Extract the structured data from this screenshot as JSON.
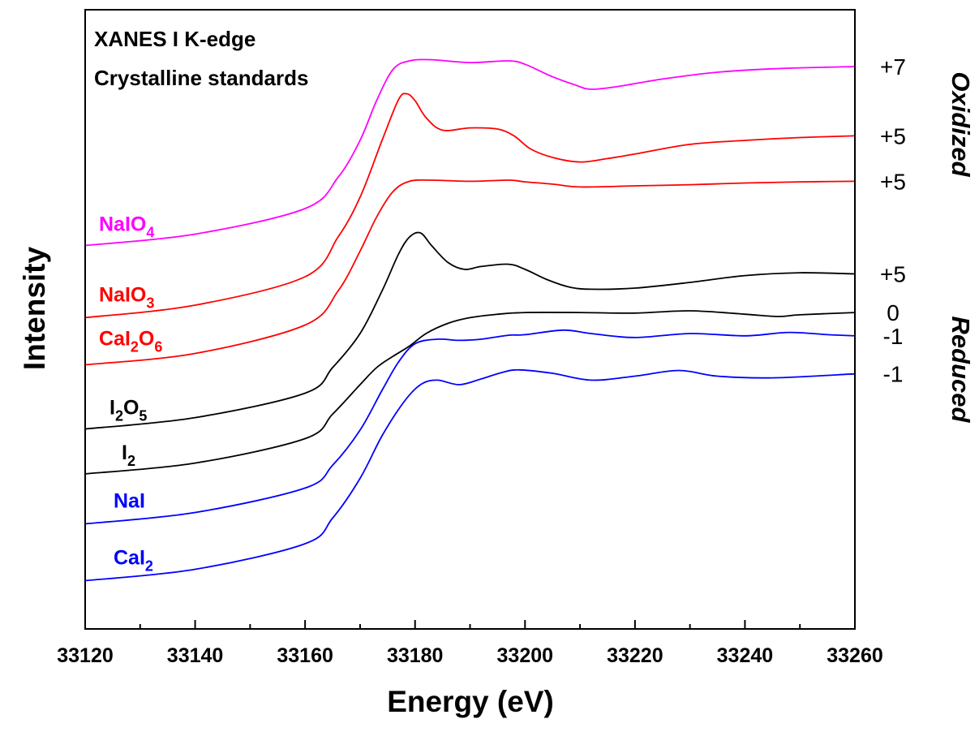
{
  "chart_data": {
    "type": "line",
    "xlabel": "Energy (eV)",
    "ylabel": "Intensity",
    "xlim": [
      33120,
      33260
    ],
    "xticks": [
      "33120",
      "33140",
      "33160",
      "33180",
      "33200",
      "33220",
      "33240",
      "33260"
    ],
    "annotation": {
      "line1": "XANES I K-edge",
      "line2": "Crystalline standards"
    },
    "side_labels": {
      "top": "Oxidized",
      "bottom": "Reduced"
    },
    "series": [
      {
        "name": "NaIO₄",
        "label": {
          "base": "NaIO",
          "sub": "4"
        },
        "color": "#ff00ff",
        "oxidation_state": "+7",
        "x": [
          33120,
          33140,
          33160,
          33166,
          33170,
          33173,
          33176,
          33179,
          33183,
          33190,
          33197,
          33200,
          33205,
          33209,
          33212,
          33217,
          33225,
          33235,
          33245,
          33260
        ],
        "y": [
          6.75,
          6.95,
          7.4,
          7.95,
          8.6,
          9.3,
          9.85,
          10.0,
          10.02,
          9.97,
          10.0,
          9.94,
          9.72,
          9.58,
          9.5,
          9.55,
          9.68,
          9.8,
          9.86,
          9.9
        ]
      },
      {
        "name": "NaIO₃",
        "label": {
          "base": "NaIO",
          "sub": "3"
        },
        "color": "#ff0000",
        "oxidation_state": "+5",
        "x": [
          33120,
          33140,
          33160,
          33166,
          33170,
          33174,
          33177,
          33178.5,
          33180,
          33182,
          33185,
          33190,
          33195,
          33198,
          33201,
          33205,
          33210,
          33215,
          33220,
          33230,
          33240,
          33250,
          33260
        ],
        "y": [
          5.48,
          5.7,
          6.2,
          6.9,
          7.6,
          8.6,
          9.32,
          9.42,
          9.3,
          9.0,
          8.78,
          8.82,
          8.8,
          8.68,
          8.45,
          8.3,
          8.22,
          8.28,
          8.36,
          8.53,
          8.6,
          8.65,
          8.68
        ]
      },
      {
        "name": "CaI₂O₆",
        "label": {
          "base": "CaI",
          "sub": "2",
          "base2": "O",
          "sub2": "6"
        },
        "color": "#ff0000",
        "oxidation_state": "+5",
        "x": [
          33120,
          33140,
          33160,
          33166,
          33170,
          33173,
          33176,
          33179,
          33183,
          33190,
          33197,
          33200,
          33205,
          33210,
          33220,
          33230,
          33240,
          33250,
          33260
        ],
        "y": [
          4.65,
          4.85,
          5.35,
          5.95,
          6.65,
          7.25,
          7.7,
          7.88,
          7.9,
          7.88,
          7.9,
          7.87,
          7.83,
          7.78,
          7.8,
          7.82,
          7.85,
          7.87,
          7.88
        ]
      },
      {
        "name": "I₂O₅",
        "label": {
          "base": "I",
          "sub": "2",
          "base2": "O",
          "sub2": "5"
        },
        "color": "#000000",
        "oxidation_state": "+5",
        "x": [
          33120,
          33140,
          33160,
          33165,
          33170,
          33174,
          33177,
          33179,
          33181,
          33183,
          33186,
          33189,
          33192,
          33197,
          33200,
          33204,
          33208,
          33212,
          33220,
          33230,
          33240,
          33250,
          33260
        ],
        "y": [
          3.52,
          3.72,
          4.15,
          4.6,
          5.2,
          5.95,
          6.6,
          6.9,
          6.97,
          6.75,
          6.45,
          6.33,
          6.38,
          6.42,
          6.33,
          6.15,
          6.02,
          5.98,
          6.0,
          6.1,
          6.22,
          6.27,
          6.25
        ]
      },
      {
        "name": "I₂",
        "label": {
          "base": "I",
          "sub": "2"
        },
        "color": "#000000",
        "oxidation_state": "0",
        "x": [
          33120,
          33140,
          33160,
          33165,
          33170,
          33173,
          33176,
          33179,
          33182,
          33186,
          33190,
          33195,
          33200,
          33210,
          33220,
          33230,
          33240,
          33246,
          33250,
          33260
        ],
        "y": [
          2.73,
          2.92,
          3.35,
          3.78,
          4.3,
          4.6,
          4.8,
          4.98,
          5.2,
          5.38,
          5.48,
          5.54,
          5.57,
          5.57,
          5.56,
          5.6,
          5.54,
          5.5,
          5.53,
          5.57
        ]
      },
      {
        "name": "NaI",
        "label": {
          "base": "NaI"
        },
        "color": "#0000ff",
        "oxidation_state": "-1",
        "x": [
          33120,
          33140,
          33160,
          33165,
          33170,
          33174,
          33177,
          33180,
          33184,
          33188,
          33192,
          33197,
          33200,
          33207,
          33212,
          33220,
          33230,
          33240,
          33248,
          33255,
          33260
        ],
        "y": [
          1.85,
          2.05,
          2.48,
          2.88,
          3.5,
          4.2,
          4.7,
          5.02,
          5.1,
          5.08,
          5.1,
          5.17,
          5.18,
          5.26,
          5.2,
          5.13,
          5.2,
          5.16,
          5.22,
          5.18,
          5.16
        ]
      },
      {
        "name": "CaI₂",
        "label": {
          "base": "CaI",
          "sub": "2"
        },
        "color": "#0000ff",
        "oxidation_state": "-1",
        "x": [
          33120,
          33140,
          33160,
          33165,
          33170,
          33174,
          33178,
          33181,
          33184,
          33188,
          33192,
          33196,
          33199,
          33205,
          33212,
          33220,
          33228,
          33235,
          33245,
          33260
        ],
        "y": [
          0.85,
          1.05,
          1.5,
          1.95,
          2.65,
          3.4,
          4.0,
          4.3,
          4.38,
          4.3,
          4.4,
          4.52,
          4.56,
          4.5,
          4.38,
          4.45,
          4.55,
          4.45,
          4.42,
          4.49
        ]
      }
    ]
  }
}
